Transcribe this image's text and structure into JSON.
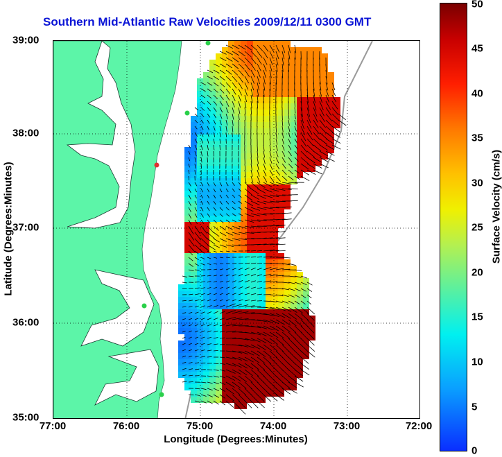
{
  "title": "Southern Mid-Atlantic Raw Velocities 2009/12/11 0300 GMT",
  "axes": {
    "xlabel": "Longitude (Degrees:Minutes)",
    "ylabel": "Latitude (Degrees:Minutes)",
    "xticks": [
      "77:00",
      "76:00",
      "75:00",
      "74:00",
      "73:00",
      "72:00"
    ],
    "yticks": [
      "39:00",
      "38:00",
      "37:00",
      "36:00",
      "35:00"
    ],
    "xlim": [
      -77,
      -72
    ],
    "ylim": [
      35,
      39
    ],
    "grid": "dotted"
  },
  "colorbar": {
    "label": "Surface Velocity (cm/s)",
    "ticks": [
      "50",
      "45",
      "40",
      "35",
      "30",
      "25",
      "20",
      "15",
      "10",
      "5",
      "0"
    ],
    "range": [
      0,
      50
    ],
    "colormap": "jet"
  },
  "colors": {
    "land": "#5cf5a8",
    "title": "#0a14d6",
    "low": "#0a2eff",
    "high": "#7a0000"
  }
}
